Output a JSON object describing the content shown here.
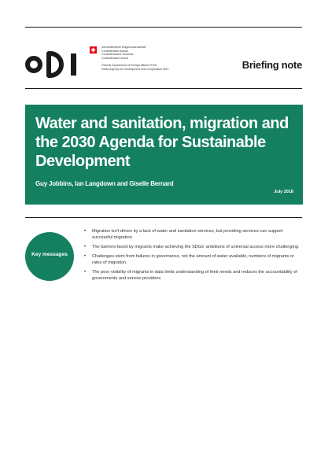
{
  "header": {
    "organisation": "ODI",
    "partner_lines_top": [
      "Schweizerische Eidgenossenschaft",
      "Confédération suisse",
      "Confederazione Svizzera",
      "Confederaziun svizra"
    ],
    "partner_lines_bottom": [
      "Federal Department of Foreign Affairs FDFA",
      "Swiss Agency for Development and Cooperation SDC"
    ],
    "document_type": "Briefing note"
  },
  "banner": {
    "title": "Water and sanitation, migration and the 2030 Agenda for Sustainable Development",
    "authors": "Guy Jobbins, Ian Langdown and Giselle Bernard",
    "date": "July 2018"
  },
  "key_messages": {
    "label": "Key messages",
    "items": [
      "Migration isn't driven by a lack of water and sanitation services, but providing services can support successful migration.",
      "The barriers faced by migrants make achieving the SDGs' ambitions of universal access more challenging.",
      "Challenges stem from failures in governance, not the amount of water available, numbers of migrants or rates of migration.",
      "The poor visibility of migrants in data limits understanding of their needs and reduces the accountability of governments and service providers."
    ]
  },
  "colors": {
    "brand_green": "#148060",
    "logo_dark": "#1a1a1a",
    "swiss_red": "#e30613"
  },
  "icons": {
    "flag": "swiss-flag-icon"
  }
}
